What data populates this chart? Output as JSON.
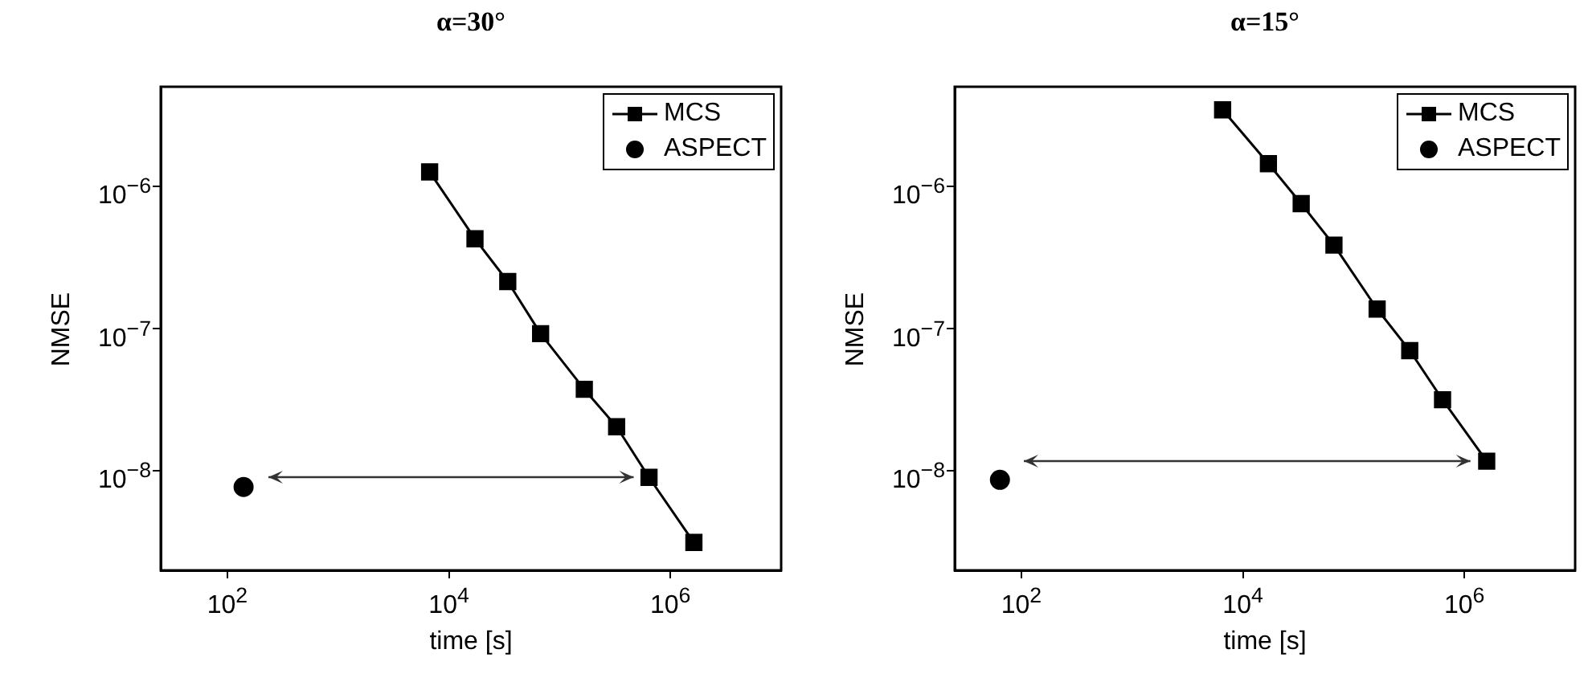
{
  "chart_data": [
    {
      "type": "line",
      "title": "α=30°",
      "xlabel": "time [s]",
      "ylabel": "NMSE",
      "log": "xy",
      "grid": false,
      "legend": "top right",
      "xlim": [
        25,
        10000000
      ],
      "ylim": [
        2e-09,
        5e-06
      ],
      "xticks": [
        {
          "value": 100,
          "label": "10$^{2}$"
        },
        {
          "value": 10000,
          "label": "10$^{4}$"
        },
        {
          "value": 1000000,
          "label": "10$^{6}$"
        }
      ],
      "yticks": [
        {
          "value": 1e-08,
          "label": "10$^{−8}$"
        },
        {
          "value": 1e-07,
          "label": "10$^{−7}$"
        },
        {
          "value": 1e-06,
          "label": "10$^{−6}$"
        }
      ],
      "series": [
        {
          "name": "MCS",
          "type": "line",
          "marker": "square",
          "line_style": "solid",
          "color": "#000000",
          "x": [
            6700,
            17200,
            34000,
            67300,
            167000,
            327000,
            641000,
            1630000
          ],
          "values": [
            1.26e-06,
            4.27e-07,
            2.14e-07,
            9.2e-08,
            3.74e-08,
            2.04e-08,
            9e-09,
            3.14e-09
          ]
        },
        {
          "name": "ASPECT",
          "type": "scatter",
          "marker": "circle",
          "color": "#000000",
          "x": [
            140
          ],
          "values": [
            7.7e-09
          ]
        }
      ]
    },
    {
      "type": "line",
      "title": "α=15°",
      "xlabel": "time [s]",
      "ylabel": "NMSE",
      "log": "xy",
      "grid": false,
      "legend": "top right",
      "xlim": [
        25,
        10000000
      ],
      "ylim": [
        2e-09,
        5e-06
      ],
      "xticks": [
        {
          "value": 100,
          "label": "10$^{2}$"
        },
        {
          "value": 10000,
          "label": "10$^{4}$"
        },
        {
          "value": 1000000,
          "label": "10$^{6}$"
        }
      ],
      "yticks": [
        {
          "value": 1e-08,
          "label": "10$^{−8}$"
        },
        {
          "value": 1e-07,
          "label": "10$^{−7}$"
        },
        {
          "value": 1e-06,
          "label": "10$^{−6}$"
        }
      ],
      "series": [
        {
          "name": "MCS",
          "type": "line",
          "marker": "square",
          "line_style": "solid",
          "color": "#000000",
          "x": [
            6560,
            17000,
            33600,
            66400,
            163000,
            321000,
            635000,
            1590000
          ],
          "values": [
            3.44e-06,
            1.44e-06,
            7.55e-07,
            3.86e-07,
            1.37e-07,
            7e-08,
            3.16e-08,
            1.17e-08
          ]
        },
        {
          "name": "ASPECT",
          "type": "scatter",
          "marker": "circle",
          "color": "#000000",
          "x": [
            64
          ],
          "values": [
            8.65e-09
          ]
        }
      ]
    }
  ]
}
